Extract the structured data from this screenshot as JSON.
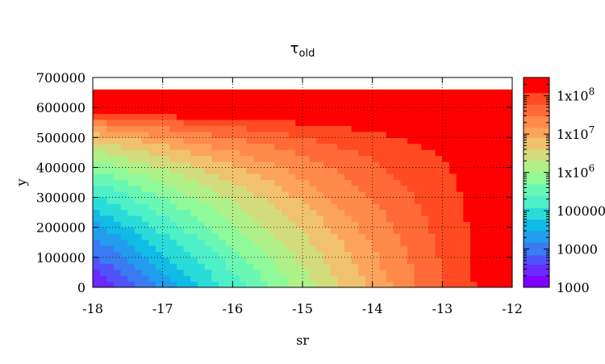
{
  "chart_data": {
    "type": "heatmap",
    "title": {
      "main": "τ",
      "subscript": "old"
    },
    "xlabel": "sr",
    "ylabel": "y",
    "xlim": [
      -18,
      -12
    ],
    "ylim": [
      0,
      700000
    ],
    "x_ticks": [
      {
        "value": -18,
        "label": "-18"
      },
      {
        "value": -17,
        "label": "-17"
      },
      {
        "value": -16,
        "label": "-16"
      },
      {
        "value": -15,
        "label": "-15"
      },
      {
        "value": -14,
        "label": "-14"
      },
      {
        "value": -13,
        "label": "-13"
      },
      {
        "value": -12,
        "label": "-12"
      }
    ],
    "y_ticks": [
      {
        "value": 0,
        "label": "0"
      },
      {
        "value": 100000,
        "label": "100000"
      },
      {
        "value": 200000,
        "label": "200000"
      },
      {
        "value": 300000,
        "label": "300000"
      },
      {
        "value": 400000,
        "label": "400000"
      },
      {
        "value": 500000,
        "label": "500000"
      },
      {
        "value": 600000,
        "label": "600000"
      },
      {
        "value": 700000,
        "label": "700000"
      }
    ],
    "grid": true,
    "data_extent": {
      "y_max": 660000
    },
    "colorbar": {
      "scale": "log",
      "range": [
        1000,
        300000000
      ],
      "tick_labels": [
        {
          "value": 1000,
          "base": "1000",
          "exp": ""
        },
        {
          "value": 10000,
          "base": "10000",
          "exp": ""
        },
        {
          "value": 100000,
          "base": "100000",
          "exp": ""
        },
        {
          "value": 1000000,
          "base": "1x10",
          "exp": "6"
        },
        {
          "value": 10000000,
          "base": "1x10",
          "exp": "7"
        },
        {
          "value": 100000000,
          "base": "1x10",
          "exp": "8"
        }
      ],
      "levels": [
        {
          "from": 1000,
          "to": 2000,
          "color": "#7f00ff"
        },
        {
          "from": 2000,
          "to": 4000,
          "color": "#6a2bfd"
        },
        {
          "from": 4000,
          "to": 7000,
          "color": "#5153f9"
        },
        {
          "from": 7000,
          "to": 15000,
          "color": "#3a7bf2"
        },
        {
          "from": 15000,
          "to": 30000,
          "color": "#229ded"
        },
        {
          "from": 30000,
          "to": 60000,
          "color": "#10bbe6"
        },
        {
          "from": 60000,
          "to": 120000,
          "color": "#2adcd8"
        },
        {
          "from": 120000,
          "to": 250000,
          "color": "#4ef0c8"
        },
        {
          "from": 250000,
          "to": 500000,
          "color": "#6af7b4"
        },
        {
          "from": 500000,
          "to": 1000000,
          "color": "#90fa9a"
        },
        {
          "from": 1000000,
          "to": 2000000,
          "color": "#b0f088"
        },
        {
          "from": 2000000,
          "to": 4000000,
          "color": "#d3dc7c"
        },
        {
          "from": 4000000,
          "to": 8000000,
          "color": "#f0c270"
        },
        {
          "from": 8000000,
          "to": 15000000,
          "color": "#fca35c"
        },
        {
          "from": 15000000,
          "to": 30000000,
          "color": "#ff8a4a"
        },
        {
          "from": 30000000,
          "to": 60000000,
          "color": "#ff6a36"
        },
        {
          "from": 60000000,
          "to": 120000000,
          "color": "#ff4a22"
        },
        {
          "from": 120000000,
          "to": 300000000,
          "color": "#ff0000"
        }
      ]
    }
  }
}
